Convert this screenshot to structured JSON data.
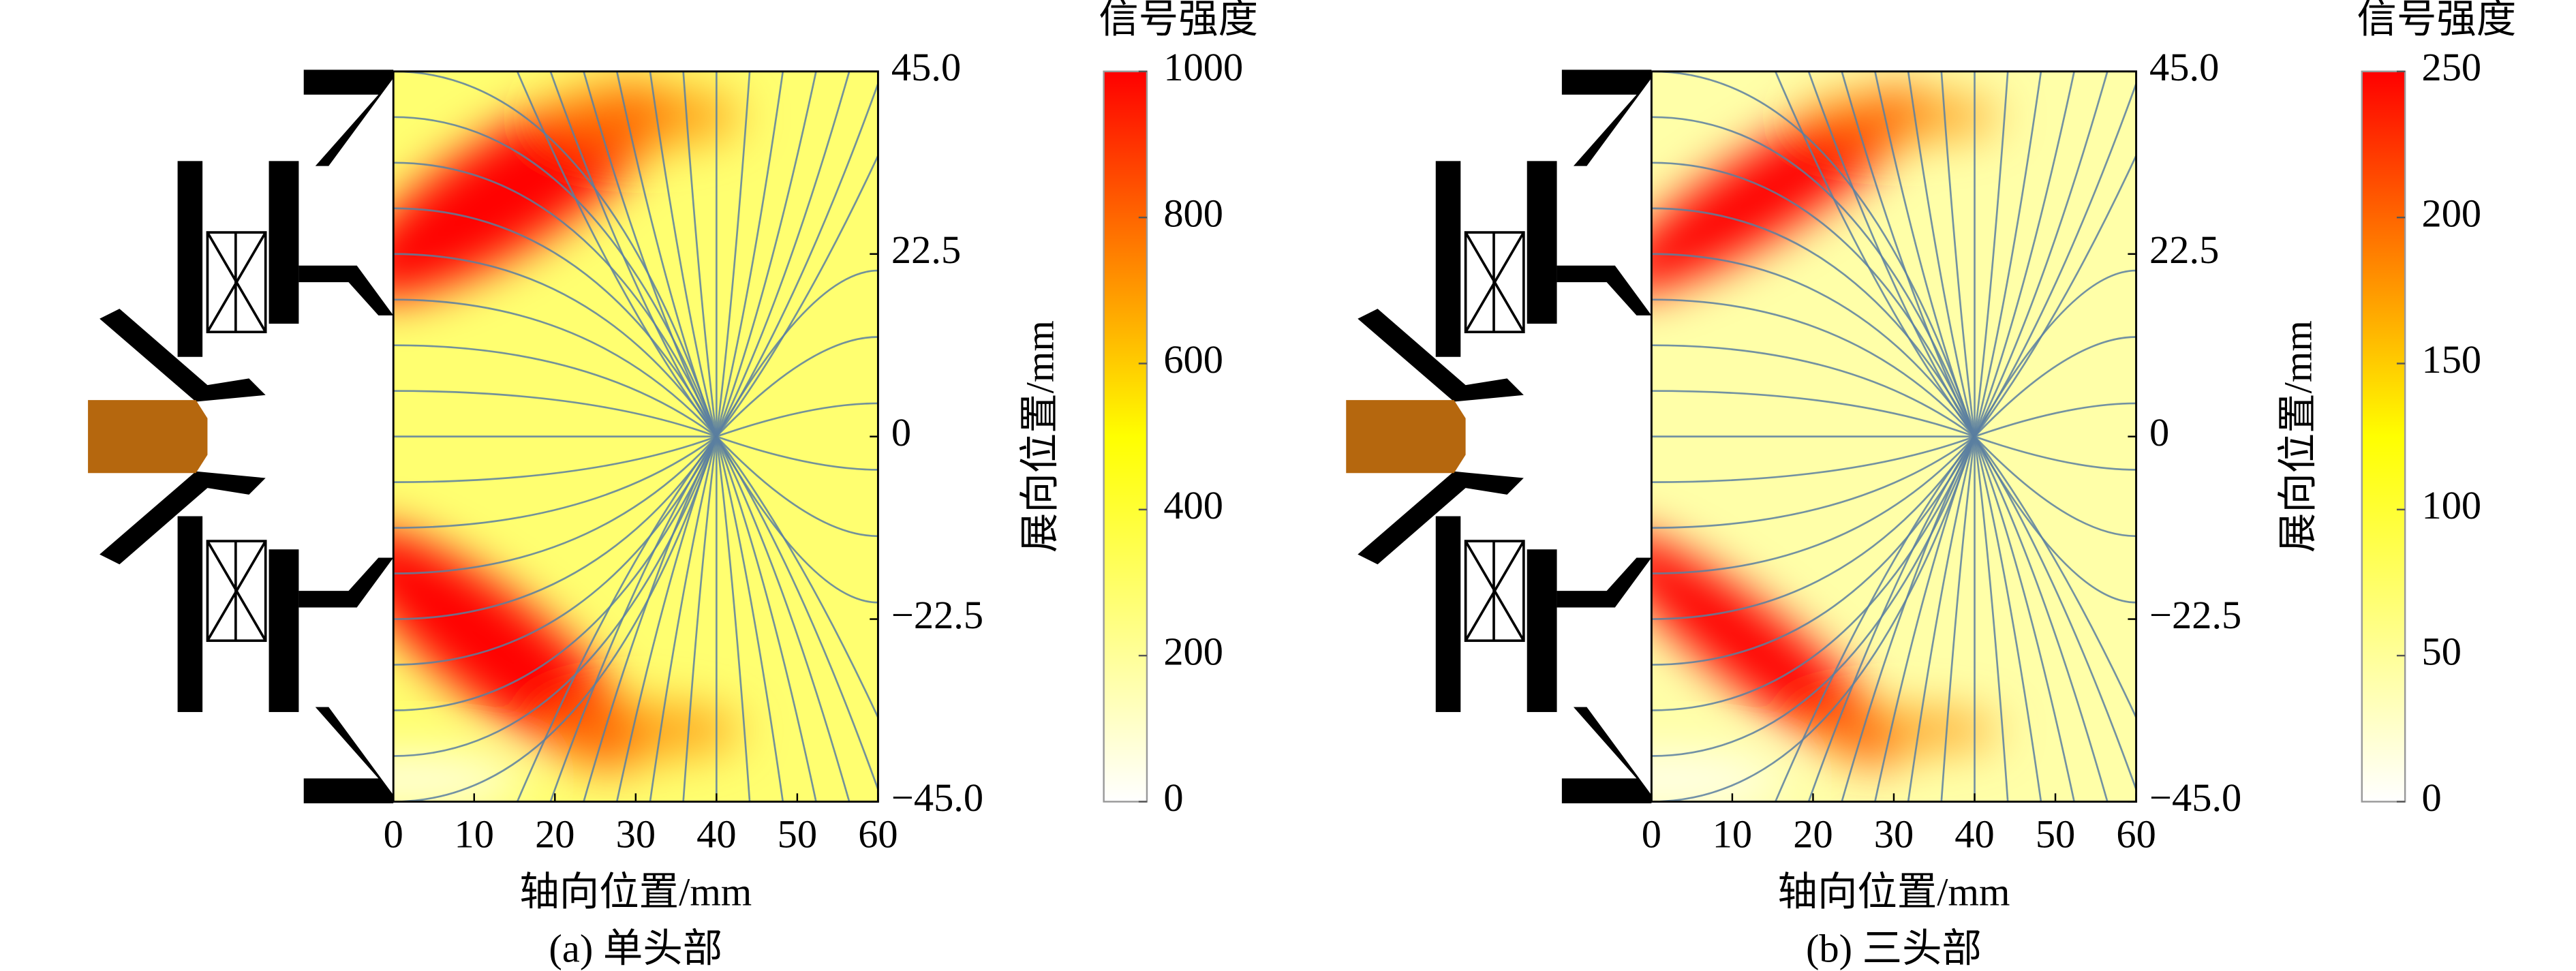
{
  "chart_data": [
    {
      "type": "heatmap",
      "caption": "(a) 单头部",
      "xlabel": "轴向位置/mm",
      "ylabel": "展向位置/mm",
      "colorbar_label": "信号强度",
      "xlim": [
        0,
        60
      ],
      "xticks": [
        0,
        10,
        20,
        30,
        40,
        50,
        60
      ],
      "ylim": [
        -45,
        45
      ],
      "yticks": [
        {
          "value": 45,
          "label": "45.0"
        },
        22.5,
        0,
        {
          "value": -22.5,
          "label": "−22.5"
        },
        {
          "value": -45,
          "label": "−45.0"
        }
      ],
      "clim": [
        0,
        1000
      ],
      "cticks": [
        0,
        200,
        400,
        600,
        800,
        1000
      ],
      "colormap": [
        "#ffffff",
        "#ffff00",
        "#ff0000"
      ]
    },
    {
      "type": "heatmap",
      "caption": "(b) 三头部",
      "xlabel": "轴向位置/mm",
      "ylabel": "展向位置/mm",
      "colorbar_label": "信号强度",
      "xlim": [
        0,
        60
      ],
      "xticks": [
        0,
        10,
        20,
        30,
        40,
        50,
        60
      ],
      "ylim": [
        -45,
        45
      ],
      "yticks": [
        {
          "value": 45,
          "label": "45.0"
        },
        22.5,
        0,
        {
          "value": -22.5,
          "label": "−22.5"
        },
        {
          "value": -45,
          "label": "−45.0"
        }
      ],
      "clim": [
        0,
        250
      ],
      "cticks": [
        0,
        50,
        100,
        150,
        200,
        250
      ],
      "colormap": [
        "#ffffff",
        "#ffff00",
        "#ff0000"
      ]
    }
  ]
}
